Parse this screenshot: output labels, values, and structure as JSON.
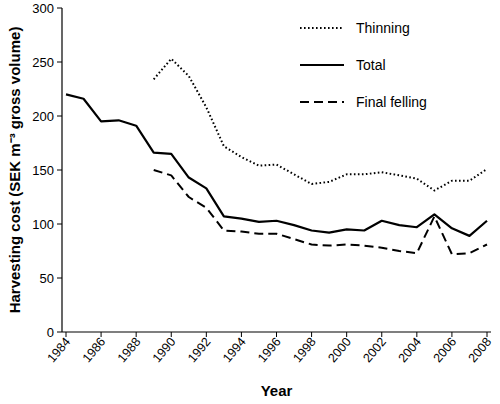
{
  "chart_data": {
    "type": "line",
    "x_label": "Year",
    "y_label": "Harvesting cost (SEK m⁻³ gross volume)",
    "x": [
      1984,
      1985,
      1986,
      1987,
      1988,
      1989,
      1990,
      1991,
      1992,
      1993,
      1994,
      1995,
      1996,
      1997,
      1998,
      1999,
      2000,
      2001,
      2002,
      2003,
      2004,
      2005,
      2006,
      2007,
      2008
    ],
    "series": [
      {
        "name": "Thinning",
        "color": "#000000",
        "line_style": "dotted",
        "values": [
          null,
          null,
          null,
          null,
          null,
          234,
          253,
          237,
          208,
          172,
          162,
          154,
          155,
          146,
          137,
          139,
          146,
          146,
          148,
          145,
          142,
          131,
          140,
          140,
          151
        ]
      },
      {
        "name": "Total",
        "color": "#000000",
        "line_style": "solid",
        "values": [
          220,
          216,
          195,
          196,
          191,
          166,
          165,
          143,
          133,
          107,
          105,
          102,
          103,
          99,
          94,
          92,
          95,
          94,
          103,
          99,
          97,
          109,
          96,
          89,
          103
        ]
      },
      {
        "name": "Final felling",
        "color": "#000000",
        "line_style": "dashed",
        "values": [
          null,
          null,
          null,
          null,
          null,
          150,
          145,
          125,
          115,
          94,
          93,
          91,
          91,
          86,
          81,
          80,
          81,
          80,
          78,
          75,
          73,
          107,
          72,
          73,
          81
        ]
      }
    ],
    "xlim": [
      1984,
      2008
    ],
    "xticks": [
      1984,
      1986,
      1988,
      1990,
      1992,
      1994,
      1996,
      1998,
      2000,
      2002,
      2004,
      2006,
      2008
    ],
    "ylim": [
      0,
      300
    ],
    "yticks": [
      0,
      50,
      100,
      150,
      200,
      250,
      300
    ],
    "grid": false,
    "legend": "upper right"
  }
}
